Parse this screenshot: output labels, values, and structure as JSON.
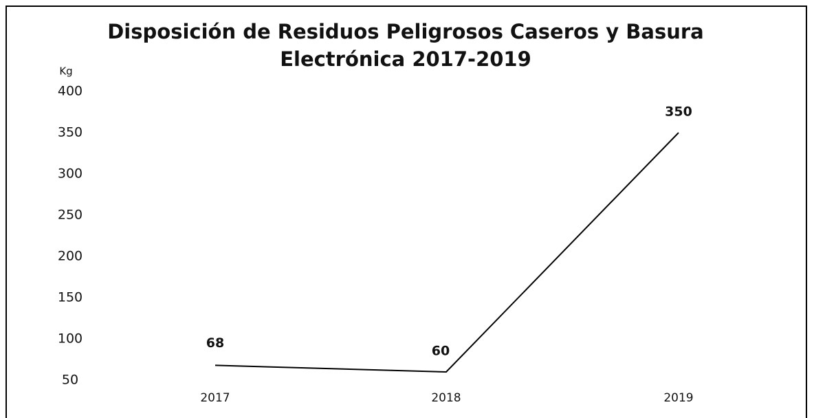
{
  "chart_data": {
    "type": "line",
    "title": "Disposición de Residuos Peligrosos Caseros y Basura Electrónica 2017-2019",
    "y_label": "Kg",
    "categories": [
      "2017",
      "2018",
      "2019"
    ],
    "series": [
      {
        "name": null,
        "color": "#000000",
        "values": [
          68,
          60,
          350
        ]
      }
    ],
    "ylim": [
      50,
      400
    ],
    "yticks": [
      50,
      100,
      150,
      200,
      250,
      300,
      350,
      400
    ],
    "grid": false
  }
}
